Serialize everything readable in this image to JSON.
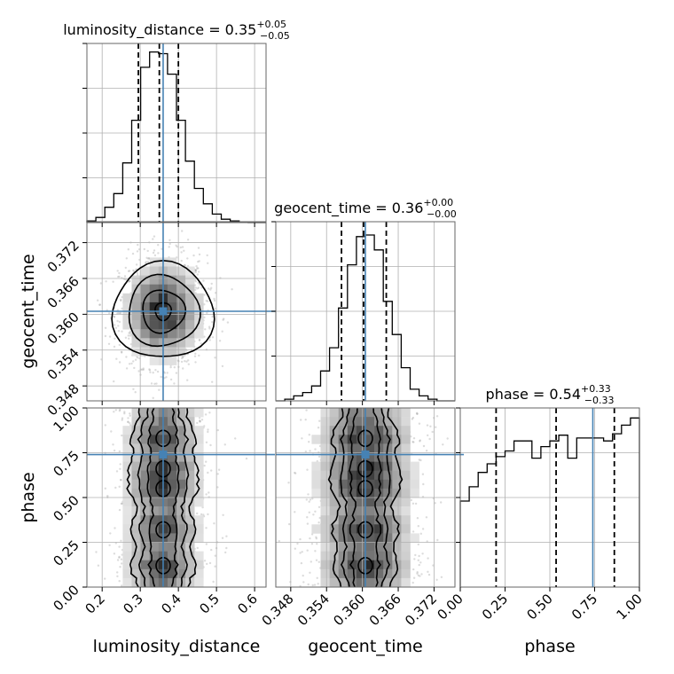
{
  "chart_data": {
    "type": "corner",
    "parameters": [
      "luminosity_distance",
      "geocent_time",
      "phase"
    ],
    "truths": [
      0.36,
      0.3605,
      0.74
    ],
    "titles": [
      {
        "main": "luminosity_distance = 0.35",
        "sup": "+0.05",
        "sub": "−0.05"
      },
      {
        "main": "geocent_time = 0.36",
        "sup": "+0.00",
        "sub": "−0.00"
      },
      {
        "main": "phase = 0.54",
        "sup": "+0.33",
        "sub": "−0.33"
      }
    ],
    "axes": [
      {
        "label": "luminosity_distance",
        "range": [
          0.16,
          0.63
        ],
        "ticks": [
          0.2,
          0.3,
          0.4,
          0.5,
          0.6
        ],
        "tick_labels": [
          "0.2",
          "0.3",
          "0.4",
          "0.5",
          "0.6"
        ]
      },
      {
        "label": "geocent_time",
        "range": [
          0.3455,
          0.3755
        ],
        "ticks": [
          0.348,
          0.354,
          0.36,
          0.366,
          0.372
        ],
        "tick_labels": [
          "0.348",
          "0.354",
          "0.360",
          "0.366",
          "0.372"
        ]
      },
      {
        "label": "phase",
        "range": [
          0.0,
          1.0
        ],
        "ticks": [
          0.0,
          0.25,
          0.5,
          0.75,
          1.0
        ],
        "tick_labels": [
          "0.00",
          "0.25",
          "0.50",
          "0.75",
          "1.00"
        ]
      }
    ],
    "quantiles": [
      [
        0.295,
        0.35,
        0.4
      ],
      [
        0.3565,
        0.3602,
        0.364
      ],
      [
        0.2,
        0.535,
        0.86
      ]
    ],
    "histograms": [
      {
        "edges": [
          0.16,
          0.1835,
          0.207,
          0.2305,
          0.254,
          0.2775,
          0.301,
          0.3245,
          0.348,
          0.3715,
          0.395,
          0.4185,
          0.442,
          0.4655,
          0.489,
          0.5125,
          0.536,
          0.5595,
          0.583,
          0.6065,
          0.63
        ],
        "counts": [
          0.01,
          0.03,
          0.09,
          0.17,
          0.35,
          0.6,
          0.91,
          1.0,
          0.99,
          0.87,
          0.6,
          0.36,
          0.2,
          0.11,
          0.05,
          0.02,
          0.01,
          0.003,
          0.0,
          0.0
        ],
        "ymax": 1.05
      },
      {
        "edges": [
          0.3455,
          0.347,
          0.3485,
          0.35,
          0.3515,
          0.353,
          0.3545,
          0.356,
          0.3575,
          0.359,
          0.3605,
          0.362,
          0.3635,
          0.365,
          0.3665,
          0.368,
          0.3695,
          0.371,
          0.3725,
          0.374,
          0.3755
        ],
        "counts": [
          0.0,
          0.01,
          0.03,
          0.05,
          0.09,
          0.18,
          0.32,
          0.56,
          0.82,
          0.99,
          1.0,
          0.91,
          0.6,
          0.4,
          0.2,
          0.07,
          0.03,
          0.01,
          0.0,
          0.0
        ],
        "ymax": 1.08
      },
      {
        "edges": [
          0.0,
          0.05,
          0.1,
          0.15,
          0.2,
          0.25,
          0.3,
          0.35,
          0.4,
          0.45,
          0.5,
          0.55,
          0.6,
          0.65,
          0.7,
          0.75,
          0.8,
          0.85,
          0.9,
          0.95,
          1.0
        ],
        "counts": [
          0.6,
          0.7,
          0.8,
          0.86,
          0.91,
          0.95,
          1.02,
          1.02,
          0.9,
          0.98,
          1.02,
          1.06,
          0.9,
          1.04,
          1.04,
          1.04,
          1.02,
          1.07,
          1.13,
          1.18
        ],
        "ymax": 1.25
      }
    ],
    "joint_peaks": {
      "phase": [
        0.12,
        0.32,
        0.55,
        0.66,
        0.83
      ]
    }
  }
}
